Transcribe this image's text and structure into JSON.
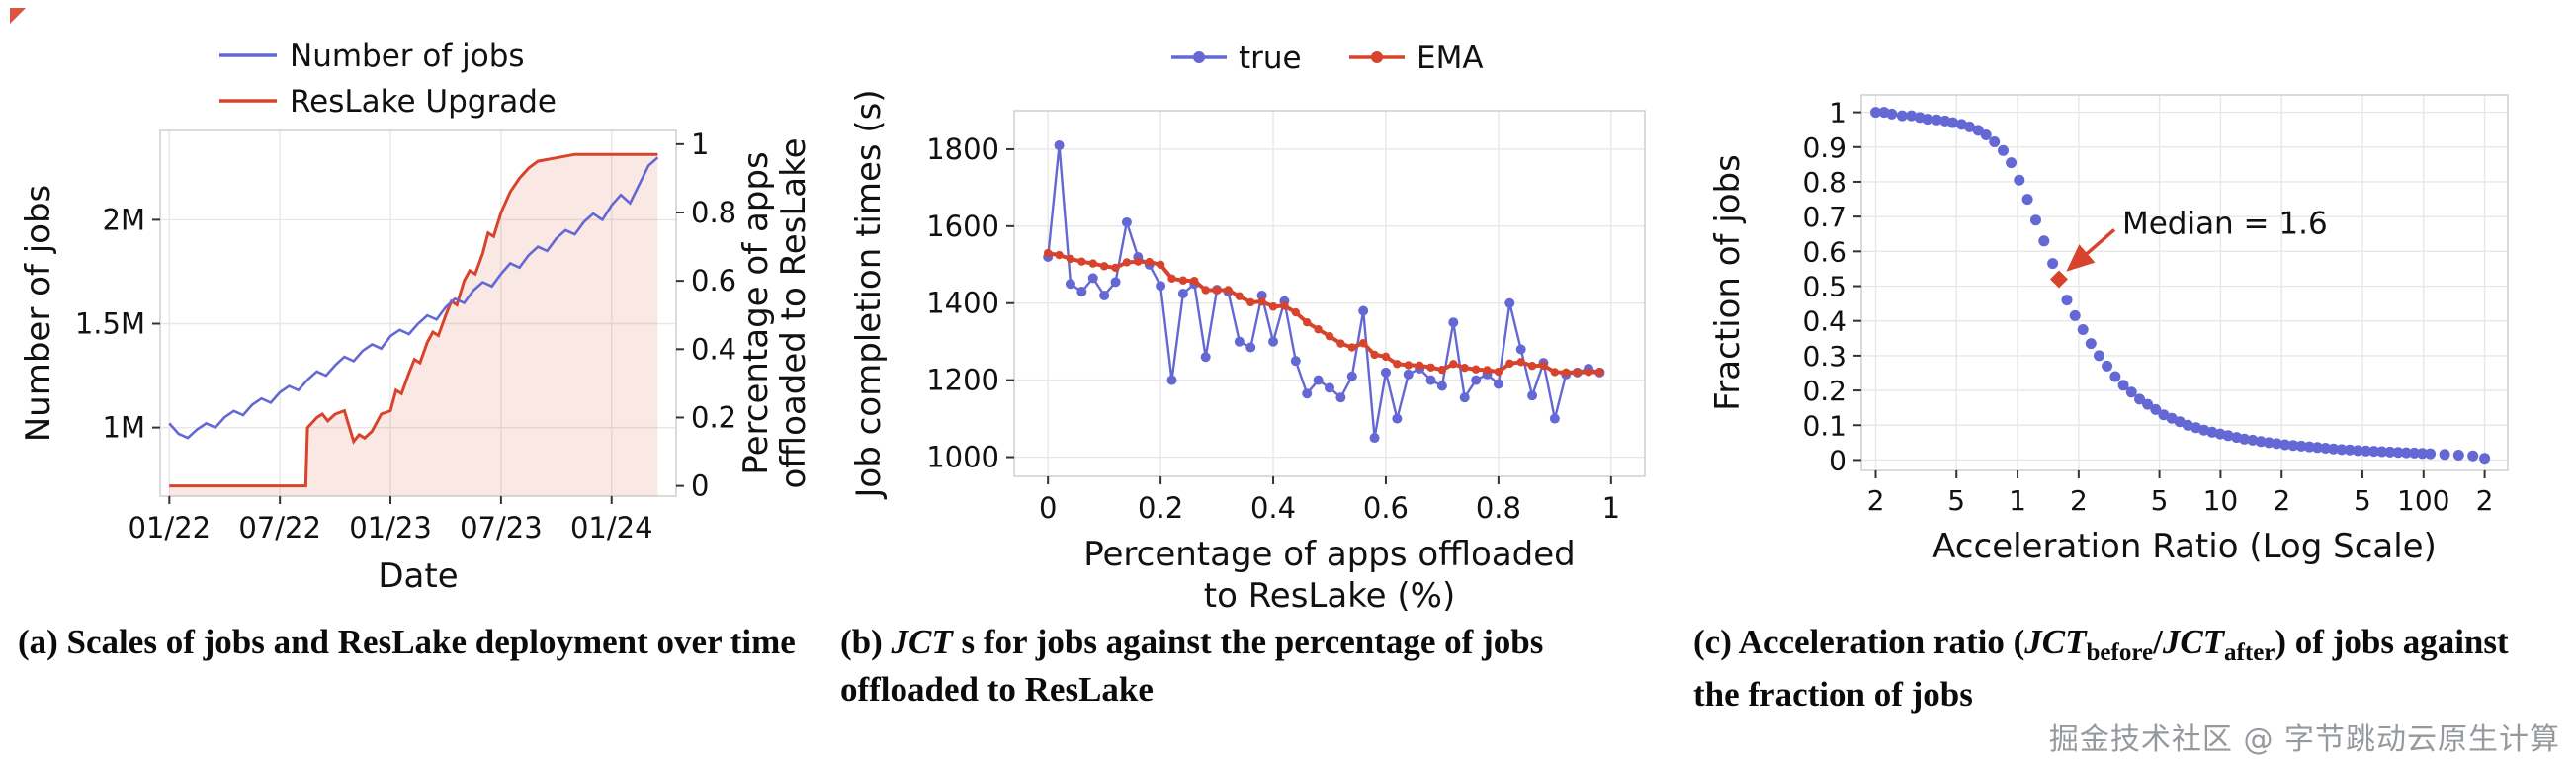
{
  "page": {
    "watermark": "掘金技术社区 @ 字节跳动云原生计算"
  },
  "colors": {
    "blue": "#6468d4",
    "red": "#d8432c",
    "red_fill": "rgba(216,67,44,0.12)",
    "grid": "#e7e7e7",
    "frame": "#cfcfcf",
    "tick": "#333333",
    "text": "#111111",
    "corner": "#d8432c"
  },
  "captions": {
    "a": [
      {
        "t": "(a) Scales of jobs and ResLake deployment over time"
      }
    ],
    "b": [
      {
        "t": "(b) "
      },
      {
        "t": "JCT",
        "it": true
      },
      {
        "t": " s for jobs against the percentage of jobs offloaded to ResLake"
      }
    ],
    "c": [
      {
        "t": "(c)  Acceleration ratio ("
      },
      {
        "t": "JCT",
        "it": true
      },
      {
        "t": "before",
        "sub": true
      },
      {
        "t": "/"
      },
      {
        "t": "JCT",
        "it": true
      },
      {
        "t": "after",
        "sub": true
      },
      {
        "t": ") of jobs against the fraction of jobs"
      }
    ]
  },
  "chart_data": [
    {
      "id": "jobs-and-reslake-over-time",
      "type": "line",
      "xlabel": "Date",
      "ylabel_left": "Number of jobs",
      "ylabel_right_lines": [
        "Percentage of apps",
        "offloaded to ResLake"
      ],
      "x_range": [
        -0.5,
        27.5
      ],
      "x_ticks": [
        {
          "v": 0,
          "label": "01/22"
        },
        {
          "v": 6,
          "label": "07/22"
        },
        {
          "v": 12,
          "label": "01/23"
        },
        {
          "v": 18,
          "label": "07/23"
        },
        {
          "v": 24,
          "label": "01/24"
        }
      ],
      "y_left_range": [
        0.67,
        2.43
      ],
      "y_left_ticks": [
        {
          "v": 1,
          "label": "1M"
        },
        {
          "v": 1.5,
          "label": "1.5M"
        },
        {
          "v": 2,
          "label": "2M"
        }
      ],
      "y_right_range": [
        -0.03,
        1.04
      ],
      "y_right_ticks": [
        0,
        0.2,
        0.4,
        0.6,
        0.8,
        1
      ],
      "legend": [
        {
          "label": "Number of jobs",
          "color": "blue"
        },
        {
          "label": "ResLake Upgrade",
          "color": "red"
        }
      ],
      "series": [
        {
          "name": "Number of jobs",
          "axis": "left",
          "color": "blue",
          "x": [
            0,
            0.5,
            1,
            1.5,
            2,
            2.5,
            3,
            3.5,
            4,
            4.5,
            5,
            5.5,
            6,
            6.5,
            7,
            7.5,
            8,
            8.5,
            9,
            9.5,
            10,
            10.5,
            11,
            11.5,
            12,
            12.5,
            13,
            13.5,
            14,
            14.5,
            15,
            15.5,
            16,
            16.5,
            17,
            17.5,
            18,
            18.5,
            19,
            19.5,
            20,
            20.5,
            21,
            21.5,
            22,
            22.5,
            23,
            23.5,
            24,
            24.5,
            25,
            25.5,
            26,
            26.5
          ],
          "y": [
            1.02,
            0.97,
            0.95,
            0.99,
            1.02,
            1.0,
            1.05,
            1.08,
            1.06,
            1.11,
            1.14,
            1.12,
            1.17,
            1.2,
            1.18,
            1.23,
            1.27,
            1.25,
            1.3,
            1.34,
            1.32,
            1.37,
            1.4,
            1.38,
            1.44,
            1.47,
            1.45,
            1.5,
            1.54,
            1.52,
            1.58,
            1.62,
            1.6,
            1.66,
            1.7,
            1.68,
            1.74,
            1.79,
            1.77,
            1.83,
            1.87,
            1.85,
            1.91,
            1.95,
            1.93,
            1.99,
            2.03,
            2.0,
            2.07,
            2.12,
            2.08,
            2.17,
            2.26,
            2.3
          ]
        },
        {
          "name": "ResLake Upgrade",
          "axis": "right",
          "color": "red",
          "fill": true,
          "x": [
            0,
            1,
            2,
            3,
            4,
            5,
            6,
            7,
            7.4,
            7.5,
            8,
            8.3,
            8.6,
            9,
            9.5,
            10,
            10.3,
            10.6,
            11,
            11.5,
            12,
            12.3,
            12.6,
            13,
            13.3,
            13.6,
            14,
            14.3,
            14.6,
            15,
            15.3,
            15.6,
            16,
            16.3,
            16.6,
            17,
            17.3,
            17.6,
            18,
            18.5,
            19,
            19.5,
            20,
            21,
            22,
            23,
            24,
            25,
            26,
            26.5
          ],
          "y": [
            0,
            0,
            0,
            0,
            0,
            0,
            0,
            0,
            0,
            0.17,
            0.2,
            0.21,
            0.19,
            0.21,
            0.22,
            0.13,
            0.15,
            0.14,
            0.16,
            0.21,
            0.22,
            0.28,
            0.27,
            0.33,
            0.37,
            0.36,
            0.42,
            0.45,
            0.44,
            0.5,
            0.54,
            0.53,
            0.6,
            0.63,
            0.62,
            0.68,
            0.74,
            0.73,
            0.8,
            0.86,
            0.9,
            0.93,
            0.95,
            0.96,
            0.97,
            0.97,
            0.97,
            0.97,
            0.97,
            0.97
          ]
        }
      ]
    },
    {
      "id": "jct-vs-offload",
      "type": "line",
      "xlabel_lines": [
        "Percentage of apps offloaded",
        "to ResLake (%)"
      ],
      "ylabel": "Job completion times (s)",
      "x_range": [
        -0.06,
        1.06
      ],
      "x_ticks": [
        0,
        0.2,
        0.4,
        0.6,
        0.8,
        1
      ],
      "y_range": [
        950,
        1900
      ],
      "y_ticks": [
        1000,
        1200,
        1400,
        1600,
        1800
      ],
      "legend": [
        {
          "label": "true",
          "color": "blue"
        },
        {
          "label": "EMA",
          "color": "red"
        }
      ],
      "x": [
        0,
        0.02,
        0.04,
        0.06,
        0.08,
        0.1,
        0.12,
        0.14,
        0.16,
        0.18,
        0.2,
        0.22,
        0.24,
        0.26,
        0.28,
        0.3,
        0.32,
        0.34,
        0.36,
        0.38,
        0.4,
        0.42,
        0.44,
        0.46,
        0.48,
        0.5,
        0.52,
        0.54,
        0.56,
        0.58,
        0.6,
        0.62,
        0.64,
        0.66,
        0.68,
        0.7,
        0.72,
        0.74,
        0.76,
        0.78,
        0.8,
        0.82,
        0.84,
        0.86,
        0.88,
        0.9,
        0.92,
        0.94,
        0.96,
        0.98
      ],
      "series": [
        {
          "name": "true",
          "color": "blue",
          "marker": "circle",
          "y": [
            1520,
            1810,
            1450,
            1430,
            1465,
            1420,
            1455,
            1610,
            1520,
            1500,
            1445,
            1200,
            1425,
            1450,
            1260,
            1435,
            1430,
            1300,
            1285,
            1420,
            1300,
            1405,
            1250,
            1165,
            1200,
            1180,
            1155,
            1210,
            1380,
            1050,
            1220,
            1100,
            1215,
            1230,
            1200,
            1185,
            1350,
            1155,
            1200,
            1215,
            1190,
            1400,
            1280,
            1160,
            1245,
            1100,
            1215,
            1220,
            1230,
            1220
          ]
        },
        {
          "name": "EMA",
          "color": "red",
          "marker": "circle",
          "y": [
            1530,
            1525,
            1515,
            1508,
            1503,
            1496,
            1492,
            1506,
            1508,
            1507,
            1500,
            1464,
            1459,
            1458,
            1434,
            1434,
            1434,
            1418,
            1402,
            1404,
            1391,
            1393,
            1376,
            1350,
            1332,
            1314,
            1295,
            1285,
            1296,
            1266,
            1261,
            1242,
            1239,
            1238,
            1233,
            1227,
            1242,
            1232,
            1228,
            1226,
            1222,
            1243,
            1247,
            1237,
            1238,
            1221,
            1220,
            1220,
            1221,
            1221
          ]
        }
      ]
    },
    {
      "id": "acceleration-ratio-cdf",
      "type": "scatter",
      "xlabel": "Acceleration Ratio (Log Scale)",
      "ylabel": "Fraction of jobs",
      "x_scale": "log",
      "x_range": [
        0.17,
        260
      ],
      "x_ticks": [
        {
          "v": 0.2,
          "label": "2"
        },
        {
          "v": 0.5,
          "label": "5"
        },
        {
          "v": 1,
          "label": "1"
        },
        {
          "v": 2,
          "label": "2"
        },
        {
          "v": 5,
          "label": "5"
        },
        {
          "v": 10,
          "label": "10"
        },
        {
          "v": 20,
          "label": "2"
        },
        {
          "v": 50,
          "label": "5"
        },
        {
          "v": 100,
          "label": "100"
        },
        {
          "v": 200,
          "label": "2"
        }
      ],
      "y_range": [
        -0.03,
        1.05
      ],
      "y_ticks": [
        0,
        0.1,
        0.2,
        0.3,
        0.4,
        0.5,
        0.6,
        0.7,
        0.8,
        0.9,
        1
      ],
      "annotation": {
        "text": "Median = 1.6",
        "x": 1.6,
        "y": 0.52
      },
      "points": {
        "x": [
          0.2,
          0.22,
          0.24,
          0.27,
          0.3,
          0.33,
          0.36,
          0.4,
          0.44,
          0.48,
          0.53,
          0.58,
          0.64,
          0.7,
          0.77,
          0.85,
          0.93,
          1.02,
          1.12,
          1.23,
          1.35,
          1.49,
          1.6,
          1.75,
          1.92,
          2.1,
          2.3,
          2.52,
          2.76,
          3.03,
          3.32,
          3.64,
          3.99,
          4.37,
          4.79,
          5.25,
          5.75,
          6.3,
          6.9,
          7.57,
          8.29,
          9.09,
          9.96,
          10.9,
          12,
          13.1,
          14.4,
          15.8,
          17.3,
          18.9,
          20.8,
          22.8,
          25,
          27.4,
          30,
          32.9,
          36,
          39.5,
          43.3,
          47.4,
          52,
          57,
          62.4,
          68.4,
          75,
          82.2,
          90.1,
          98.7,
          108,
          127,
          149,
          175,
          200
        ],
        "y": [
          1,
          1,
          0.995,
          0.99,
          0.99,
          0.985,
          0.98,
          0.978,
          0.975,
          0.97,
          0.965,
          0.958,
          0.948,
          0.935,
          0.915,
          0.89,
          0.855,
          0.805,
          0.75,
          0.69,
          0.63,
          0.565,
          0.52,
          0.46,
          0.415,
          0.375,
          0.335,
          0.3,
          0.27,
          0.24,
          0.215,
          0.195,
          0.175,
          0.16,
          0.145,
          0.13,
          0.12,
          0.11,
          0.1,
          0.093,
          0.086,
          0.08,
          0.075,
          0.07,
          0.065,
          0.06,
          0.057,
          0.053,
          0.05,
          0.047,
          0.044,
          0.042,
          0.04,
          0.038,
          0.036,
          0.034,
          0.032,
          0.03,
          0.029,
          0.027,
          0.026,
          0.025,
          0.024,
          0.023,
          0.022,
          0.021,
          0.02,
          0.019,
          0.018,
          0.016,
          0.014,
          0.012,
          0.005
        ]
      }
    }
  ]
}
